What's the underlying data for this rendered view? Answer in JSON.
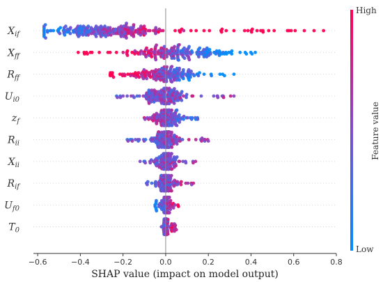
{
  "chart_data": {
    "type": "scatter",
    "title": "",
    "xlabel": "SHAP value (impact on model output)",
    "xlim": [
      -0.62,
      0.8
    ],
    "xticks": [
      -0.6,
      -0.4,
      -0.2,
      0.0,
      0.2,
      0.4,
      0.6,
      0.8
    ],
    "xtick_labels": [
      "−0.6",
      "−0.4",
      "−0.2",
      "0.0",
      "0.2",
      "0.4",
      "0.6",
      "0.8"
    ],
    "grid": false,
    "colorbar": {
      "label": "Feature value",
      "high_label": "High",
      "low_label": "Low",
      "low_color": "#008bfb",
      "high_color": "#ff0052"
    },
    "features": [
      {
        "name": "X",
        "sub": "if",
        "min": -0.57,
        "max": 0.74,
        "center": -0.28,
        "spread": 0.16,
        "count": 260,
        "trend": 1.6
      },
      {
        "name": "X",
        "sub": "ff",
        "min": -0.41,
        "max": 0.42,
        "center": 0.04,
        "spread": 0.12,
        "count": 200,
        "trend": -1.8
      },
      {
        "name": "R",
        "sub": "ff",
        "min": -0.26,
        "max": 0.32,
        "center": 0.0,
        "spread": 0.08,
        "count": 180,
        "trend": -1.6
      },
      {
        "name": "U",
        "sub": "i0",
        "min": -0.23,
        "max": 0.32,
        "center": -0.01,
        "spread": 0.05,
        "count": 170,
        "trend": 0.2
      },
      {
        "name": "z",
        "sub": "f",
        "min": -0.1,
        "max": 0.15,
        "center": 0.0,
        "spread": 0.03,
        "count": 150,
        "trend": -0.6
      },
      {
        "name": "R",
        "sub": "ii",
        "min": -0.18,
        "max": 0.2,
        "center": 0.0,
        "spread": 0.03,
        "count": 150,
        "trend": 0.3
      },
      {
        "name": "X",
        "sub": "ii",
        "min": -0.12,
        "max": 0.14,
        "center": 0.0,
        "spread": 0.025,
        "count": 140,
        "trend": 0.2
      },
      {
        "name": "R",
        "sub": "if",
        "min": -0.09,
        "max": 0.13,
        "center": 0.0,
        "spread": 0.02,
        "count": 120,
        "trend": 0.4
      },
      {
        "name": "U",
        "sub": "f0",
        "min": -0.05,
        "max": 0.06,
        "center": 0.0,
        "spread": 0.012,
        "count": 110,
        "trend": 0.8
      },
      {
        "name": "T",
        "sub": "0",
        "min": -0.02,
        "max": 0.05,
        "center": 0.0,
        "spread": 0.006,
        "count": 90,
        "trend": 0.6
      }
    ]
  }
}
